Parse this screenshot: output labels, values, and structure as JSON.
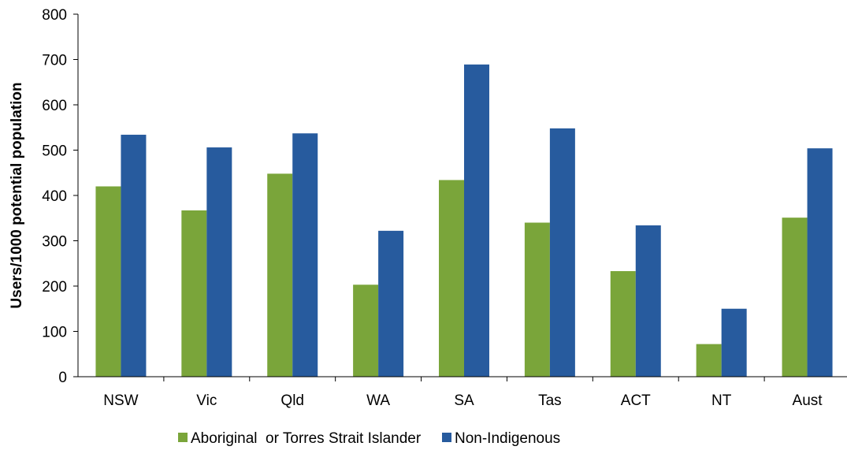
{
  "chart_data": {
    "type": "bar",
    "title": "",
    "xlabel": "",
    "ylabel": "Users/1000  potential  population",
    "ylim": [
      0,
      800
    ],
    "yticks": [
      0,
      100,
      200,
      300,
      400,
      500,
      600,
      700,
      800
    ],
    "categories": [
      "NSW",
      "Vic",
      "Qld",
      "WA",
      "SA",
      "Tas",
      "ACT",
      "NT",
      "Aust"
    ],
    "series": [
      {
        "name": "Aboriginal  or Torres Strait Islander",
        "color": "#7aa53a",
        "values": [
          420,
          367,
          448,
          203,
          434,
          340,
          233,
          72,
          351
        ]
      },
      {
        "name": "Non-Indigenous",
        "color": "#275b9e",
        "values": [
          534,
          506,
          537,
          322,
          689,
          548,
          334,
          150,
          504
        ]
      }
    ],
    "legend_position": "bottom",
    "grid": false
  }
}
